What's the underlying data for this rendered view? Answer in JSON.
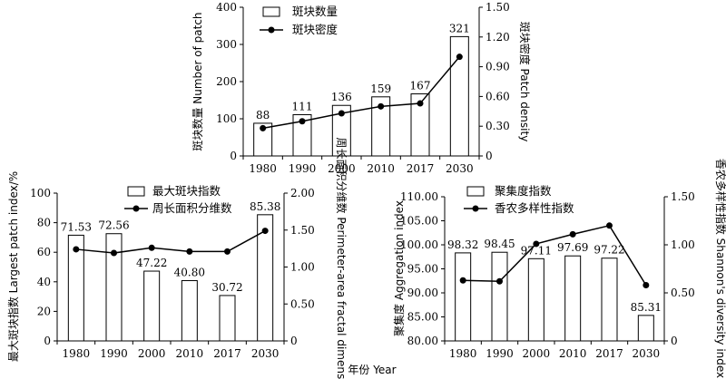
{
  "chart_data": [
    {
      "type": "bar",
      "categories": [
        "1980",
        "1990",
        "2000",
        "2010",
        "2017",
        "2030"
      ],
      "series": [
        {
          "name": "斑块数量",
          "kind": "bar",
          "axis": "left",
          "values": [
            88,
            111,
            136,
            159,
            167,
            321
          ],
          "labels": [
            "88",
            "111",
            "136",
            "159",
            "167",
            "321"
          ]
        },
        {
          "name": "斑块密度",
          "kind": "line",
          "axis": "right",
          "values": [
            0.28,
            0.35,
            0.43,
            0.5,
            0.53,
            1.0
          ]
        }
      ],
      "ylabel_left": "斑块数量 Number of patch",
      "ylim_left": [
        0,
        400
      ],
      "yticks_left": [
        "0",
        "100",
        "200",
        "300",
        "400"
      ],
      "ylabel_right": "斑块密度 Patch density",
      "ylim_right": [
        0,
        1.5
      ],
      "yticks_right": [
        "0",
        "0.30",
        "0.60",
        "0.90",
        "1.20",
        "1.50"
      ],
      "legend": "top-left",
      "grid": false
    },
    {
      "type": "bar",
      "categories": [
        "1980",
        "1990",
        "2000",
        "2010",
        "2017",
        "2030"
      ],
      "series": [
        {
          "name": "最大斑块指数",
          "kind": "bar",
          "axis": "left",
          "values": [
            71.53,
            72.56,
            47.22,
            40.8,
            30.72,
            85.38
          ],
          "labels": [
            "71.53",
            "72.56",
            "47.22",
            "40.80",
            "30.72",
            "85.38"
          ]
        },
        {
          "name": "周长面积分维数",
          "kind": "line",
          "axis": "right",
          "values": [
            1.24,
            1.19,
            1.26,
            1.21,
            1.21,
            1.49
          ]
        }
      ],
      "ylabel_left": "最大斑块指数 Largest patch index/%",
      "ylim_left": [
        0,
        100
      ],
      "yticks_left": [
        "0",
        "20",
        "40",
        "60",
        "80",
        "100"
      ],
      "ylabel_right": "周长面积分维数 Perimeter-area fractal dimension",
      "ylim_right": [
        0,
        2
      ],
      "yticks_right": [
        "0",
        "0.50",
        "1.00",
        "1.50",
        "2.00"
      ],
      "legend": "top",
      "grid": false
    },
    {
      "type": "bar",
      "categories": [
        "1980",
        "1990",
        "2000",
        "2010",
        "2017",
        "2030"
      ],
      "series": [
        {
          "name": "聚集度指数",
          "kind": "bar",
          "axis": "left",
          "values": [
            98.32,
            98.45,
            97.11,
            97.69,
            97.22,
            85.31
          ],
          "labels": [
            "98.32",
            "98.45",
            "97.11",
            "97.69",
            "97.22",
            "85.31"
          ]
        },
        {
          "name": "香农多样性指数",
          "kind": "line",
          "axis": "right",
          "values": [
            0.63,
            0.62,
            1.01,
            1.11,
            1.2,
            0.58
          ]
        }
      ],
      "ylabel_left": "聚集度 Aggregation index",
      "ylim_left": [
        80,
        110
      ],
      "yticks_left": [
        "80.00",
        "85.00",
        "90.00",
        "95.00",
        "100.00",
        "105.00",
        "110.00"
      ],
      "ylabel_right": "香农多样性指数 Shannon's diversity index",
      "ylim_right": [
        0,
        1.5
      ],
      "yticks_right": [
        "0",
        "0.50",
        "1.00",
        "1.50"
      ],
      "legend": "top",
      "grid": false
    }
  ],
  "xlabel": "年份 Year"
}
